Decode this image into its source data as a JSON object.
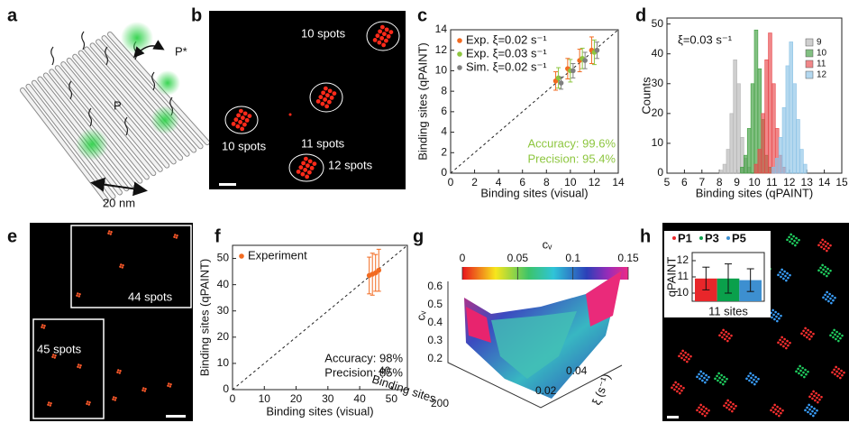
{
  "figure": {
    "panel_labels": [
      "a",
      "b",
      "c",
      "d",
      "e",
      "f",
      "g",
      "h"
    ],
    "a": {
      "p_star": "P*",
      "p": "P",
      "scale": "20 nm"
    },
    "b": {
      "spots": [
        "10 spots",
        "11 spots",
        "10 spots",
        "12 spots"
      ]
    },
    "e": {
      "spots": [
        "44 spots",
        "45 spots"
      ]
    },
    "g": {
      "colorbar_label": "cᵥ",
      "colorbar_lim": [
        0,
        0.15
      ],
      "colorbar_ticks": [
        0,
        0.05,
        0.1,
        0.15
      ],
      "z_label": "cᵥ",
      "z_ticks": [
        "0.6",
        "0.5",
        "0.4",
        "0.3",
        "0.2"
      ],
      "sites_label": "Binding sites",
      "sites_ticks": [
        "40",
        "200"
      ],
      "xi_label": "ξ (s⁻¹)",
      "xi_ticks": [
        "0.02",
        "0.04"
      ]
    }
  },
  "chart_data": [
    {
      "type": "scatter",
      "xlabel": "Binding sites (visual)",
      "ylabel": "Binding sites (qPAINT)",
      "xlim": [
        0,
        14
      ],
      "ylim": [
        0,
        14
      ],
      "xticks": [
        0,
        2,
        4,
        6,
        8,
        10,
        12,
        14
      ],
      "yticks": [
        0,
        2,
        4,
        6,
        8,
        10,
        12,
        14
      ],
      "legend": "upper left",
      "annotations": [
        "Accuracy: 99.6%",
        "Precision: 95.4%"
      ],
      "annotation_color": "#8dc63f",
      "series": [
        {
          "name": "Exp. ξ=0.02 s⁻¹",
          "color": "#f26b21",
          "x": [
            9,
            10,
            11,
            12
          ],
          "values": [
            9.0,
            10.2,
            11.0,
            12.0
          ],
          "errors": [
            0.9,
            1.0,
            1.1,
            1.3
          ]
        },
        {
          "name": "Exp. ξ=0.03 s⁻¹",
          "color": "#8dc63f",
          "x": [
            9,
            10,
            11,
            12
          ],
          "values": [
            9.3,
            10.0,
            11.2,
            11.8
          ],
          "errors": [
            1.0,
            1.1,
            1.0,
            1.2
          ]
        },
        {
          "name": "Sim. ξ=0.02 s⁻¹",
          "color": "#7f7f7f",
          "x": [
            9,
            10,
            11,
            12
          ],
          "values": [
            8.8,
            10.0,
            11.0,
            12.0
          ],
          "errors": [
            0.6,
            0.7,
            0.8,
            0.8
          ]
        }
      ]
    },
    {
      "type": "histogram",
      "xlabel": "Binding sites (qPAINT)",
      "ylabel": "Counts",
      "xlim": [
        5,
        15
      ],
      "ylim": [
        0,
        52
      ],
      "xticks": [
        5,
        6,
        7,
        8,
        9,
        10,
        11,
        12,
        13,
        14,
        15
      ],
      "yticks": [
        0,
        10,
        20,
        30,
        40,
        50
      ],
      "legend": "upper right",
      "annotations": [
        "ξ=0.03 s⁻¹"
      ],
      "series": [
        {
          "name": "9",
          "color": "#b5b5b5",
          "bins": [
            8.0,
            8.2,
            8.4,
            8.6,
            8.8,
            9.0,
            9.2,
            9.4,
            9.6,
            9.8
          ],
          "counts": [
            1,
            3,
            8,
            20,
            38,
            30,
            12,
            5,
            2
          ]
        },
        {
          "name": "10",
          "color": "#3f9e3f",
          "bins": [
            9.2,
            9.4,
            9.6,
            9.8,
            10.0,
            10.2,
            10.4,
            10.6,
            10.8,
            11.0
          ],
          "counts": [
            2,
            6,
            15,
            30,
            48,
            35,
            18,
            6,
            2
          ]
        },
        {
          "name": "11",
          "color": "#e8474a",
          "bins": [
            10.0,
            10.2,
            10.4,
            10.6,
            10.8,
            11.0,
            11.2,
            11.4,
            11.6,
            11.8
          ],
          "counts": [
            3,
            8,
            20,
            38,
            47,
            30,
            15,
            6,
            2
          ]
        },
        {
          "name": "12",
          "color": "#8cc3e6",
          "bins": [
            11.0,
            11.2,
            11.4,
            11.6,
            11.8,
            12.0,
            12.2,
            12.4,
            12.6,
            12.8,
            13.0
          ],
          "counts": [
            2,
            5,
            12,
            22,
            36,
            44,
            30,
            18,
            8,
            3
          ]
        }
      ]
    },
    {
      "type": "scatter",
      "xlabel": "Binding sites (visual)",
      "ylabel": "Binding sites (qPAINT)",
      "xlim": [
        0,
        55
      ],
      "ylim": [
        0,
        55
      ],
      "xticks": [
        0,
        10,
        20,
        30,
        40,
        50
      ],
      "yticks": [
        0,
        10,
        20,
        30,
        40,
        50
      ],
      "legend": "upper left",
      "annotations": [
        "Accuracy: 98%",
        "Precision: 85%"
      ],
      "annotation_color": "#111111",
      "series": [
        {
          "name": "Experiment",
          "color": "#f26b21",
          "x": [
            43,
            44,
            45,
            46
          ],
          "values": [
            43.5,
            44.0,
            44.5,
            45.5
          ],
          "errors": [
            7,
            8,
            7,
            8
          ]
        }
      ]
    },
    {
      "type": "bar",
      "ylabel": "qPAINT",
      "xlabel": "11 sites",
      "ylim": [
        9.5,
        12.5
      ],
      "yticks": [
        10,
        11,
        12
      ],
      "series": [
        {
          "name": "P1",
          "color": "#e8262a",
          "values": [
            10.9
          ],
          "errors": [
            0.7
          ]
        },
        {
          "name": "P3",
          "color": "#0aa04b",
          "values": [
            10.9
          ],
          "errors": [
            0.9
          ]
        },
        {
          "name": "P5",
          "color": "#3d8fd0",
          "values": [
            10.8
          ],
          "errors": [
            0.7
          ]
        }
      ]
    }
  ]
}
